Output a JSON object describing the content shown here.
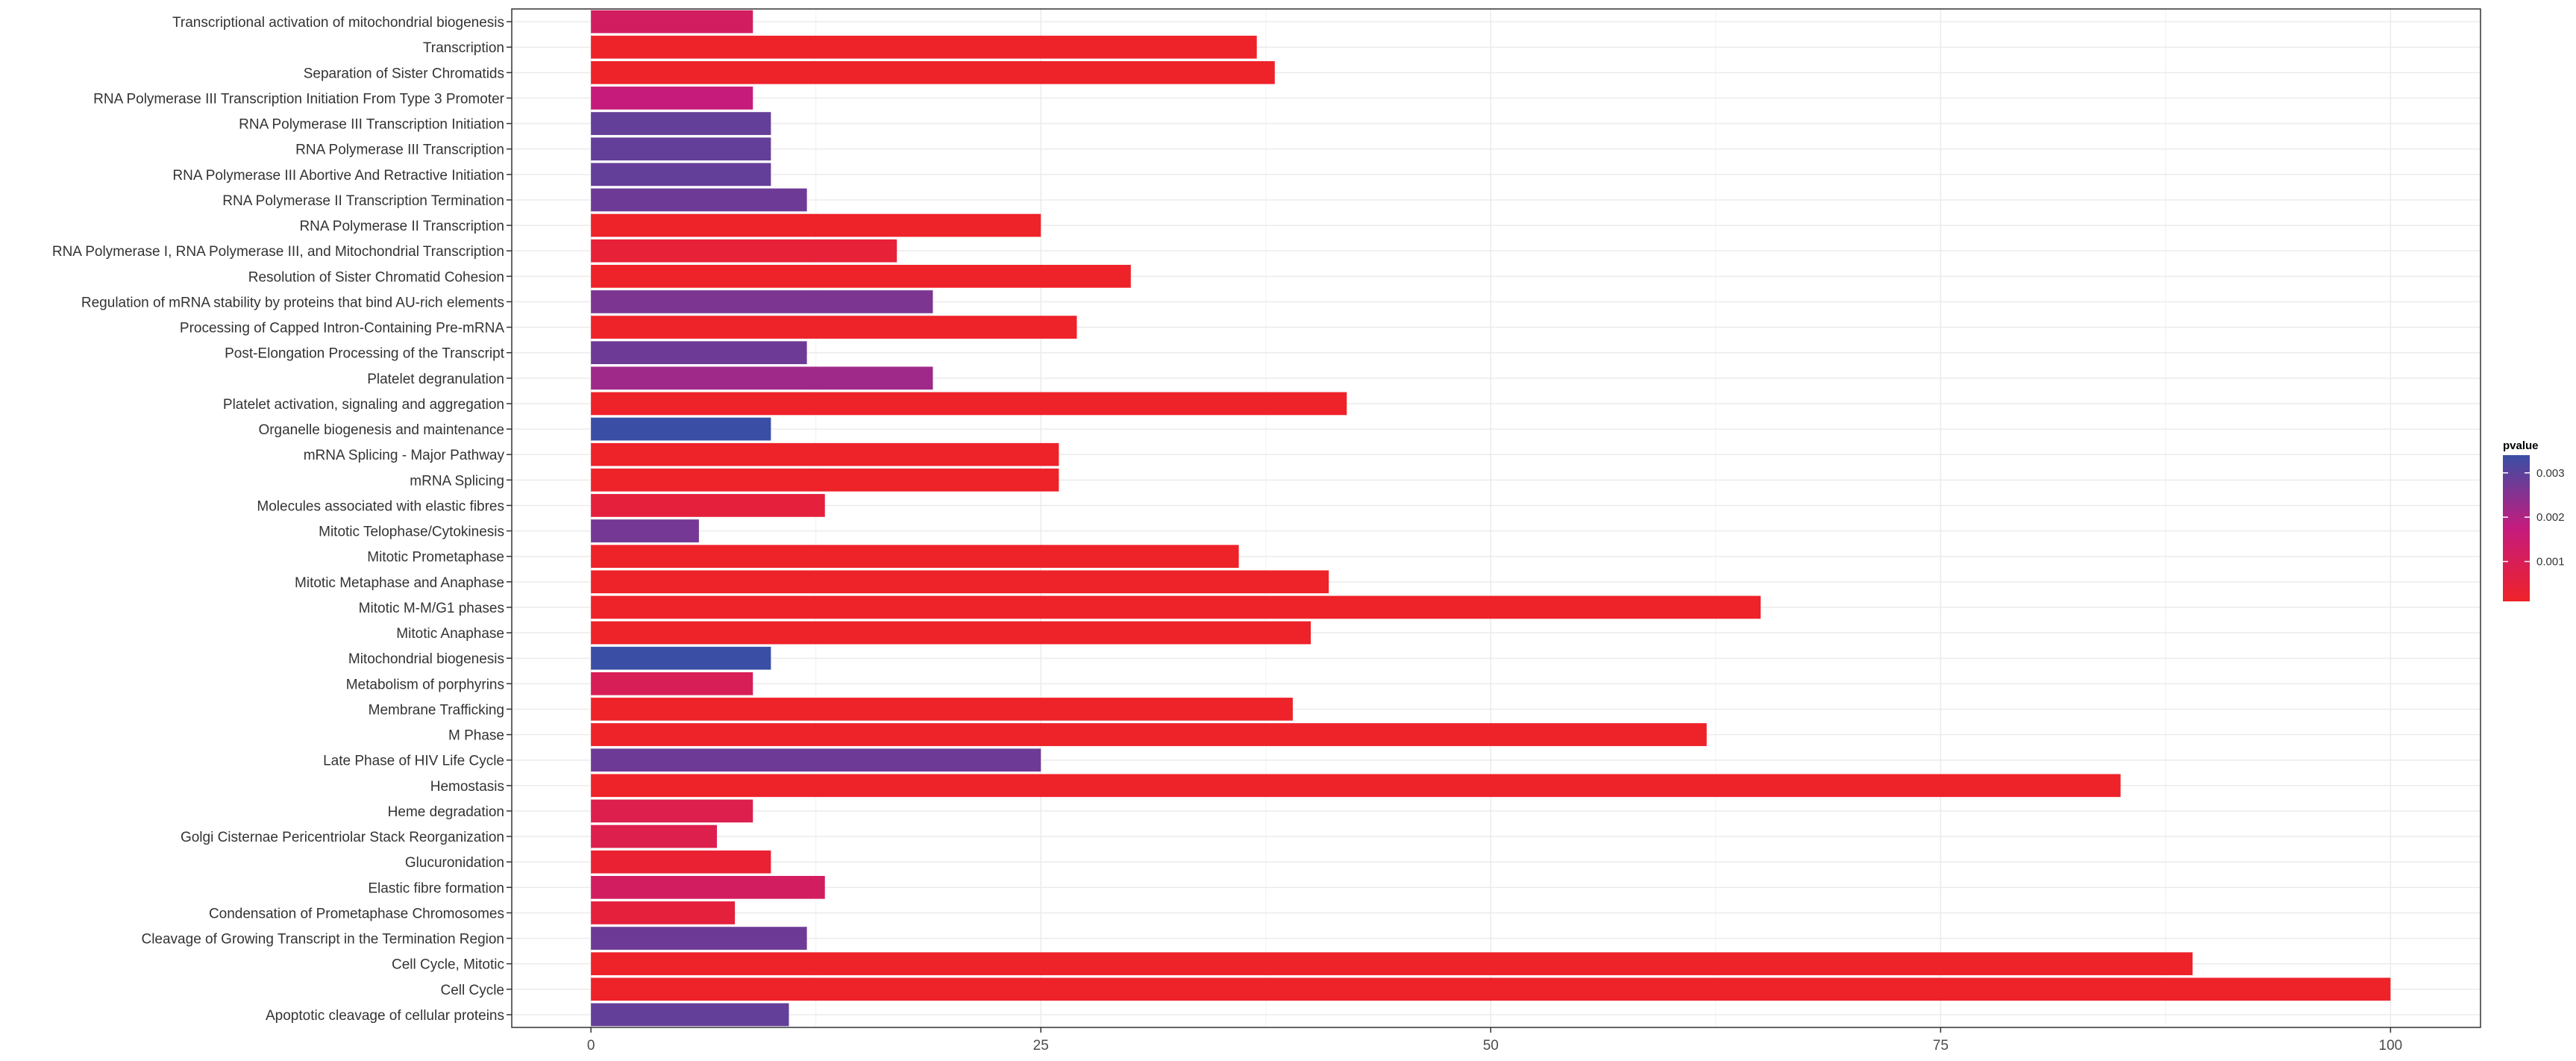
{
  "chart_data": {
    "type": "bar",
    "orientation": "horizontal",
    "categories": [
      "Apoptotic cleavage of cellular proteins",
      "Cell Cycle",
      "Cell Cycle, Mitotic",
      "Cleavage of Growing Transcript in the Termination Region ",
      "Condensation of Prometaphase Chromosomes",
      "Elastic fibre formation",
      "Glucuronidation",
      "Golgi Cisternae Pericentriolar Stack Reorganization",
      "Heme degradation",
      "Hemostasis",
      "Late Phase of HIV Life Cycle",
      "M Phase",
      "Membrane Trafficking",
      "Metabolism of porphyrins",
      "Mitochondrial biogenesis",
      "Mitotic Anaphase",
      "Mitotic M-M/G1 phases",
      "Mitotic Metaphase and Anaphase",
      "Mitotic Prometaphase",
      "Mitotic Telophase/Cytokinesis",
      "Molecules associated with elastic fibres",
      "mRNA Splicing",
      "mRNA Splicing - Major Pathway",
      "Organelle biogenesis and maintenance",
      "Platelet activation, signaling and aggregation",
      "Platelet degranulation ",
      "Post-Elongation Processing of the Transcript",
      "Processing of Capped Intron-Containing Pre-mRNA",
      "Regulation of mRNA stability by proteins that bind AU-rich elements",
      "Resolution of Sister Chromatid Cohesion",
      "RNA Polymerase I, RNA Polymerase III, and Mitochondrial Transcription",
      "RNA Polymerase II Transcription",
      "RNA Polymerase II Transcription Termination",
      "RNA Polymerase III Abortive And Retractive Initiation",
      "RNA Polymerase III Transcription",
      "RNA Polymerase III Transcription Initiation",
      "RNA Polymerase III Transcription Initiation From Type 3 Promoter",
      "Separation of Sister Chromatids",
      "Transcription",
      "Transcriptional activation of mitochondrial biogenesis"
    ],
    "values": [
      11,
      100,
      89,
      12,
      8,
      13,
      10,
      7,
      9,
      85,
      25,
      62,
      39,
      9,
      10,
      40,
      65,
      41,
      36,
      6,
      13,
      26,
      26,
      10,
      42,
      19,
      12,
      27,
      19,
      30,
      17,
      25,
      12,
      10,
      10,
      10,
      9,
      38,
      37,
      9
    ],
    "pvalues": [
      0.0029,
      0.0001,
      0.0001,
      0.0028,
      0.0005,
      0.0012,
      0.0003,
      0.0008,
      0.0008,
      0.0001,
      0.0028,
      0.0001,
      0.0001,
      0.001,
      0.0034,
      0.0001,
      0.0001,
      0.0001,
      0.0001,
      0.0027,
      0.0005,
      0.0001,
      0.0001,
      0.0034,
      0.0001,
      0.0022,
      0.0028,
      0.0001,
      0.0026,
      0.0001,
      0.0004,
      0.0001,
      0.0028,
      0.0029,
      0.0029,
      0.0029,
      0.0017,
      0.0001,
      0.0001,
      0.0012
    ],
    "xlim": [
      -4.4,
      105
    ],
    "xticks": [
      0,
      25,
      50,
      75,
      100
    ],
    "xlabel": "",
    "ylabel": "",
    "grid": true,
    "legend": {
      "title": "pvalue",
      "position": "right",
      "ticks": [
        0.001,
        0.002,
        0.003
      ],
      "tick_labels": [
        "0.001",
        "0.002",
        "0.003"
      ],
      "range": [
        0.0001,
        0.0034
      ],
      "color_low": "#ee2229",
      "color_mid": "#c51b7d",
      "color_high": "#3a4ea5"
    }
  }
}
